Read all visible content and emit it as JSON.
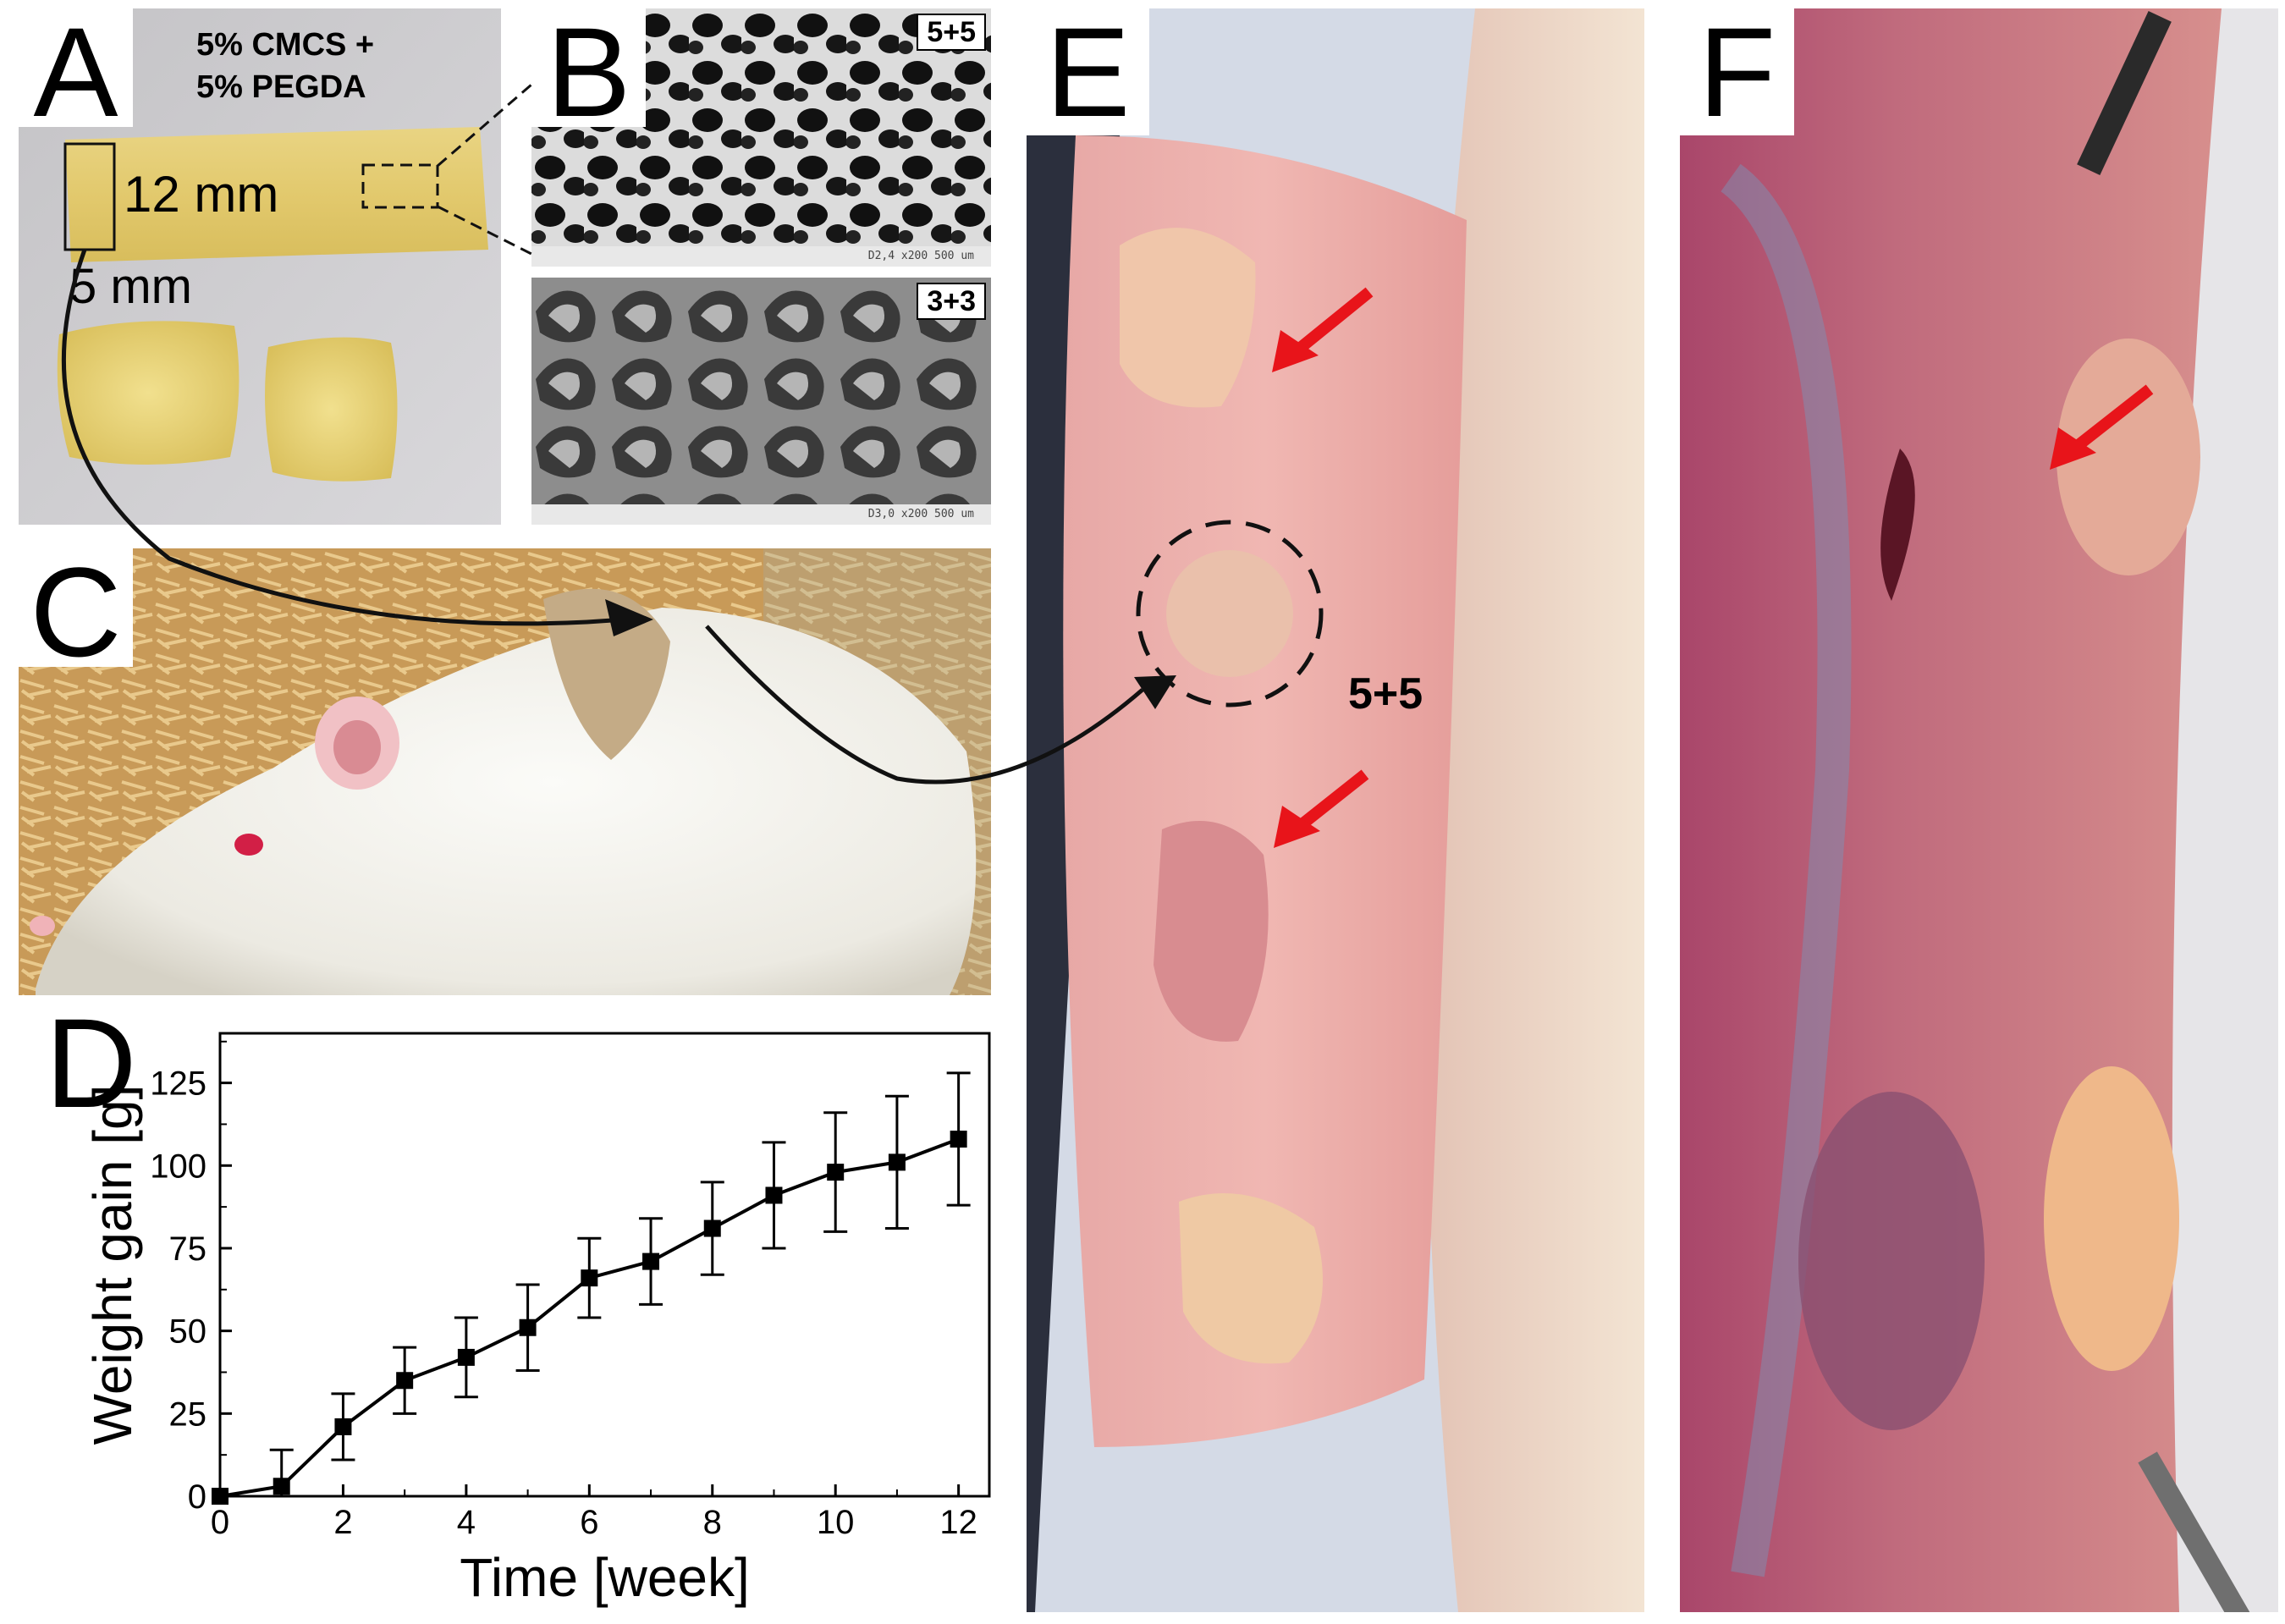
{
  "panels": {
    "A": {
      "label": "A",
      "title_line1": "5% CMCS +",
      "title_line2": "5% PEGDA",
      "dim_length": "12 mm",
      "dim_width": "5 mm"
    },
    "B": {
      "label": "B",
      "top_tag": "5+5",
      "bottom_tag": "3+3",
      "top_scale": "D2,4   x200    500 um",
      "bottom_scale": "D3,0   x200    500 um"
    },
    "C": {
      "label": "C"
    },
    "D": {
      "label": "D"
    },
    "E": {
      "label": "E",
      "circle_tag": "5+5"
    },
    "F": {
      "label": "F"
    }
  },
  "colors": {
    "arrow_red": "#e8141a",
    "gel_yellow": "#e6cf72",
    "tissue_pink": "#e9a3a0",
    "muscle_red": "#b24e5c"
  },
  "chart_data": {
    "type": "line",
    "xlabel": "Time [week]",
    "ylabel": "Weight gain [g]",
    "xlim": [
      0,
      12.5
    ],
    "ylim": [
      0,
      140
    ],
    "x_ticks": [
      "0",
      "2",
      "4",
      "6",
      "8",
      "10",
      "12"
    ],
    "y_ticks": [
      "0",
      "25",
      "50",
      "75",
      "100",
      "125"
    ],
    "marker": "square",
    "x": [
      0,
      1,
      2,
      3,
      4,
      5,
      6,
      7,
      8,
      9,
      10,
      11,
      12
    ],
    "y": [
      0,
      3,
      21,
      35,
      42,
      51,
      66,
      71,
      81,
      91,
      98,
      101,
      108
    ],
    "error": [
      0,
      11,
      10,
      10,
      12,
      13,
      12,
      13,
      14,
      16,
      18,
      20,
      20
    ]
  }
}
